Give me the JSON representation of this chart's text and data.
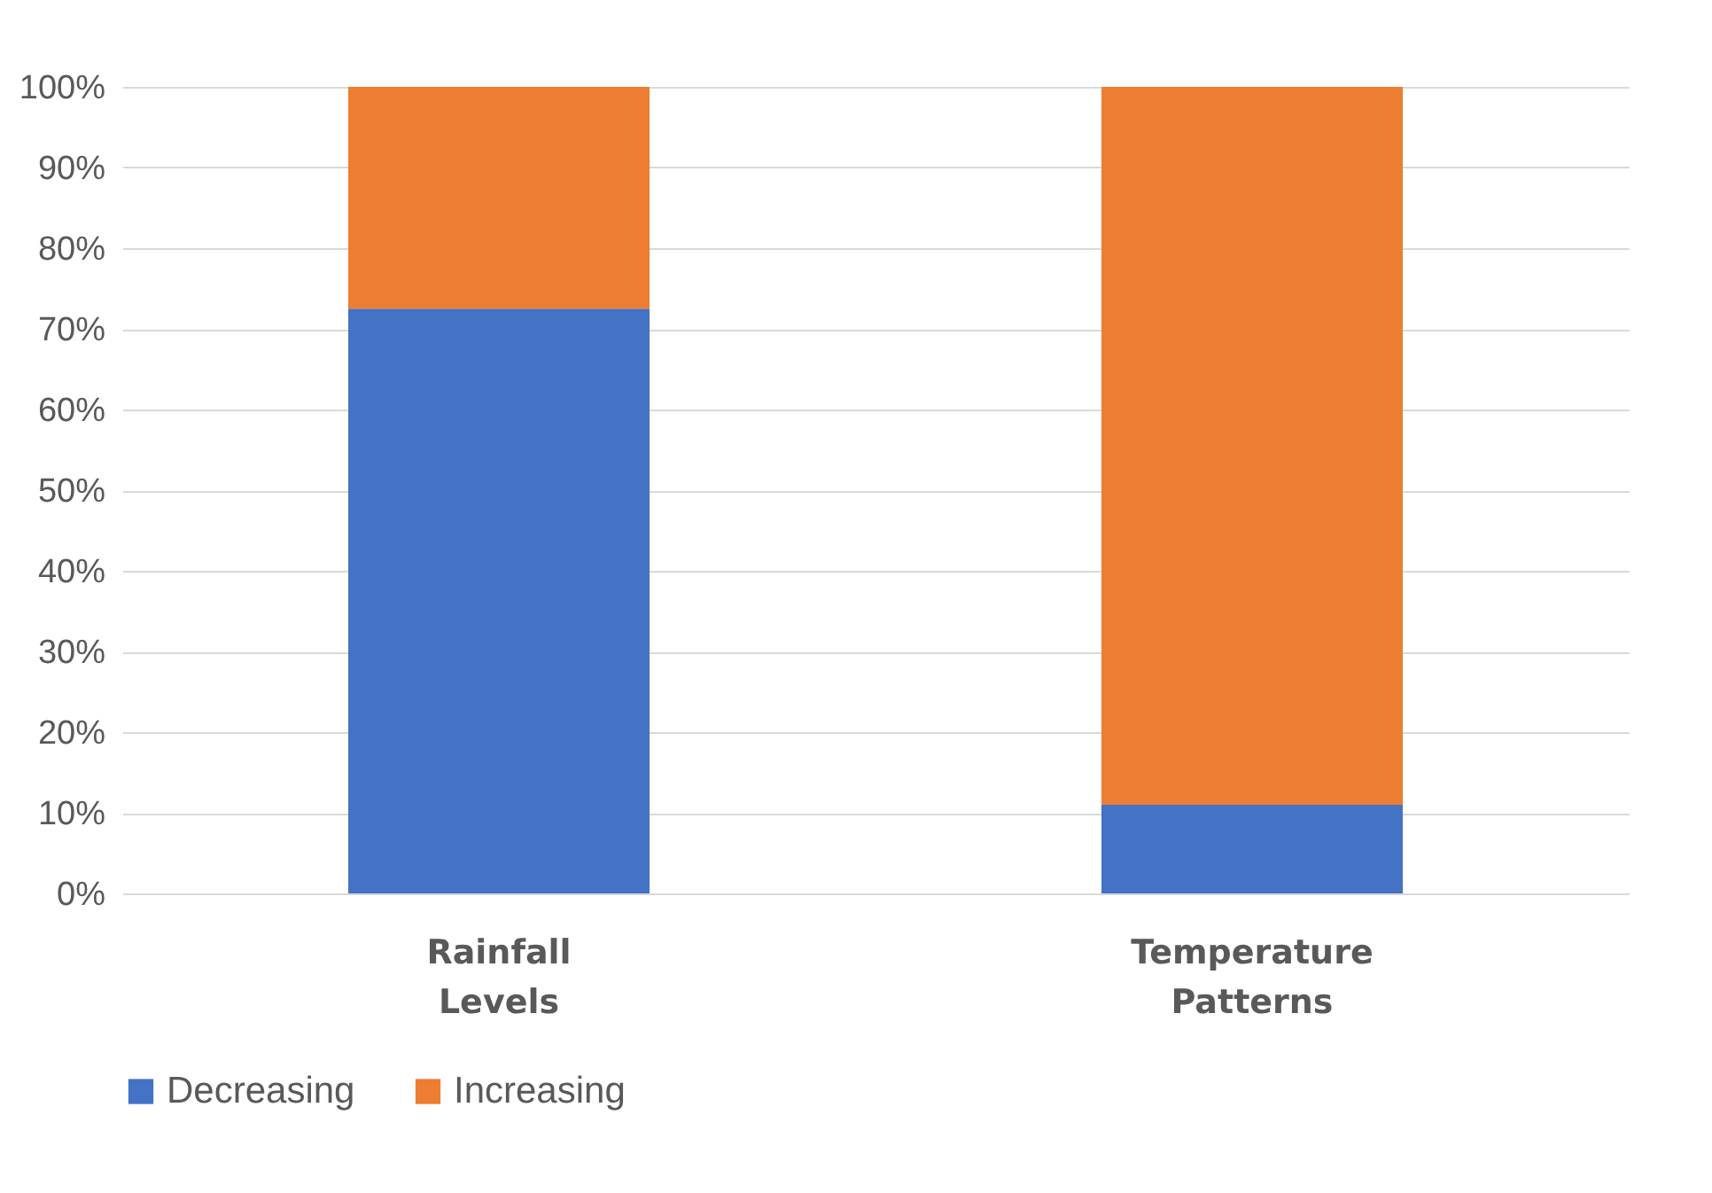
{
  "chart_data": {
    "type": "bar",
    "stacked": true,
    "categories": [
      "Rainfall Levels",
      "Temperature Patterns"
    ],
    "series": [
      {
        "name": "Decreasing",
        "color": "#4472c4",
        "values": [
          72.5,
          11
        ]
      },
      {
        "name": "Increasing",
        "color": "#ed7d31",
        "values": [
          27.5,
          89
        ]
      }
    ],
    "ylim": [
      0,
      100
    ],
    "yticks": [
      {
        "value": 0,
        "label": "0%"
      },
      {
        "value": 10,
        "label": "10%"
      },
      {
        "value": 20,
        "label": "20%"
      },
      {
        "value": 30,
        "label": "30%"
      },
      {
        "value": 40,
        "label": "40%"
      },
      {
        "value": 50,
        "label": "50%"
      },
      {
        "value": 60,
        "label": "60%"
      },
      {
        "value": 70,
        "label": "70%"
      },
      {
        "value": 80,
        "label": "80%"
      },
      {
        "value": 90,
        "label": "90%"
      },
      {
        "value": 100,
        "label": "100%"
      }
    ],
    "grid": "y",
    "legend": "bottom"
  }
}
